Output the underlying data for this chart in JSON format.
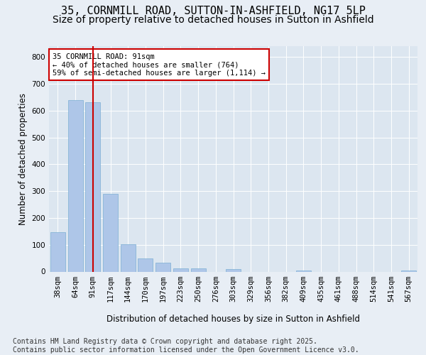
{
  "title_line1": "35, CORNMILL ROAD, SUTTON-IN-ASHFIELD, NG17 5LP",
  "title_line2": "Size of property relative to detached houses in Sutton in Ashfield",
  "xlabel": "Distribution of detached houses by size in Sutton in Ashfield",
  "ylabel": "Number of detached properties",
  "categories": [
    "38sqm",
    "64sqm",
    "91sqm",
    "117sqm",
    "144sqm",
    "170sqm",
    "197sqm",
    "223sqm",
    "250sqm",
    "276sqm",
    "303sqm",
    "329sqm",
    "356sqm",
    "382sqm",
    "409sqm",
    "435sqm",
    "461sqm",
    "488sqm",
    "514sqm",
    "541sqm",
    "567sqm"
  ],
  "values": [
    148,
    638,
    630,
    290,
    103,
    50,
    33,
    11,
    11,
    0,
    8,
    0,
    0,
    0,
    5,
    0,
    0,
    0,
    0,
    0,
    3
  ],
  "bar_color": "#aec6e8",
  "bar_edge_color": "#7bafd4",
  "vline_x": 2,
  "vline_color": "#cc0000",
  "annotation_text": "35 CORNMILL ROAD: 91sqm\n← 40% of detached houses are smaller (764)\n59% of semi-detached houses are larger (1,114) →",
  "annotation_box_color": "#ffffff",
  "annotation_box_edge": "#cc0000",
  "bg_color": "#e8eef5",
  "plot_bg_color": "#dce6f0",
  "footnote": "Contains HM Land Registry data © Crown copyright and database right 2025.\nContains public sector information licensed under the Open Government Licence v3.0.",
  "ylim": [
    0,
    840
  ],
  "yticks": [
    0,
    100,
    200,
    300,
    400,
    500,
    600,
    700,
    800
  ],
  "title_fontsize": 11,
  "subtitle_fontsize": 10,
  "axis_label_fontsize": 8.5,
  "tick_fontsize": 7.5,
  "footnote_fontsize": 7
}
